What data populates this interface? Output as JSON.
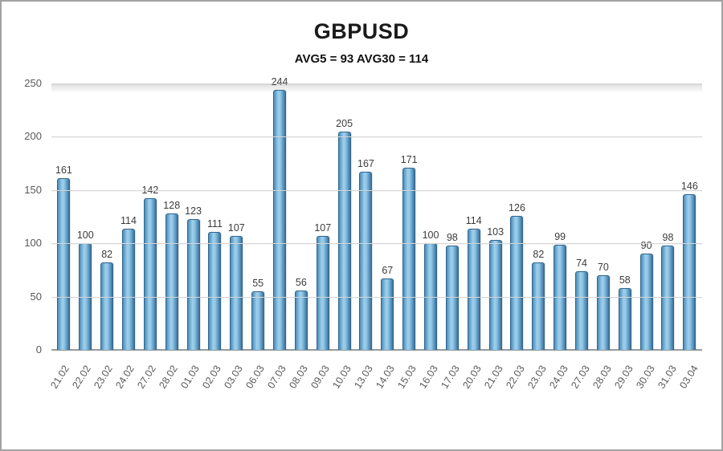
{
  "chart_data": {
    "type": "bar",
    "title": "GBPUSD",
    "subtitle": "AVG5 = 93 AVG30 = 114",
    "categories": [
      "21.02",
      "22.02",
      "23.02",
      "24.02",
      "27.02",
      "28.02",
      "01.03",
      "02.03",
      "03.03",
      "06.03",
      "07.03",
      "08.03",
      "09.03",
      "10.03",
      "13.03",
      "14.03",
      "15.03",
      "16.03",
      "17.03",
      "20.03",
      "21.03",
      "22.03",
      "23.03",
      "24.03",
      "27.03",
      "28.03",
      "29.03",
      "30.03",
      "31.03",
      "03.04"
    ],
    "values": [
      161,
      100,
      82,
      114,
      142,
      128,
      123,
      111,
      107,
      55,
      244,
      56,
      107,
      205,
      167,
      67,
      171,
      100,
      98,
      114,
      103,
      126,
      82,
      99,
      74,
      70,
      58,
      90,
      98,
      146
    ],
    "ylim": [
      0,
      250
    ],
    "yticks": [
      0,
      50,
      100,
      150,
      200,
      250
    ],
    "grid": true,
    "legend": "none",
    "colors": {
      "bar_light": "#9fd0ec",
      "bar_mid": "#6aaed6",
      "bar_dark": "#3a739f",
      "bar_border": "#2f6690",
      "gridline": "#d7d7d7",
      "axis": "#9b9b9b",
      "value_label": "#3b3b3b",
      "tick_label": "#595959"
    }
  }
}
